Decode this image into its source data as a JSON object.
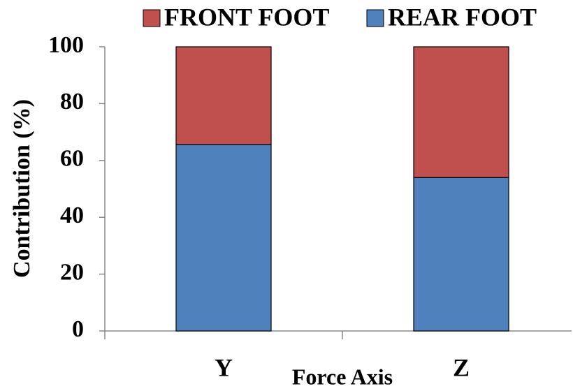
{
  "chart_data": {
    "type": "bar",
    "stacked": true,
    "x_label": "Force Axis",
    "y_label": "Contribution (%)",
    "categories": [
      "Y",
      "Z"
    ],
    "series": [
      {
        "name": "FRONT FOOT",
        "color": "#c0504d",
        "values": [
          34.4,
          46
        ]
      },
      {
        "name": "REAR FOOT",
        "color": "#4f81bd",
        "values": [
          65.6,
          54
        ]
      }
    ],
    "ylim": [
      0,
      100
    ],
    "yticks": [
      0,
      20,
      40,
      60,
      80,
      100
    ],
    "grid": false,
    "legend": "top"
  }
}
